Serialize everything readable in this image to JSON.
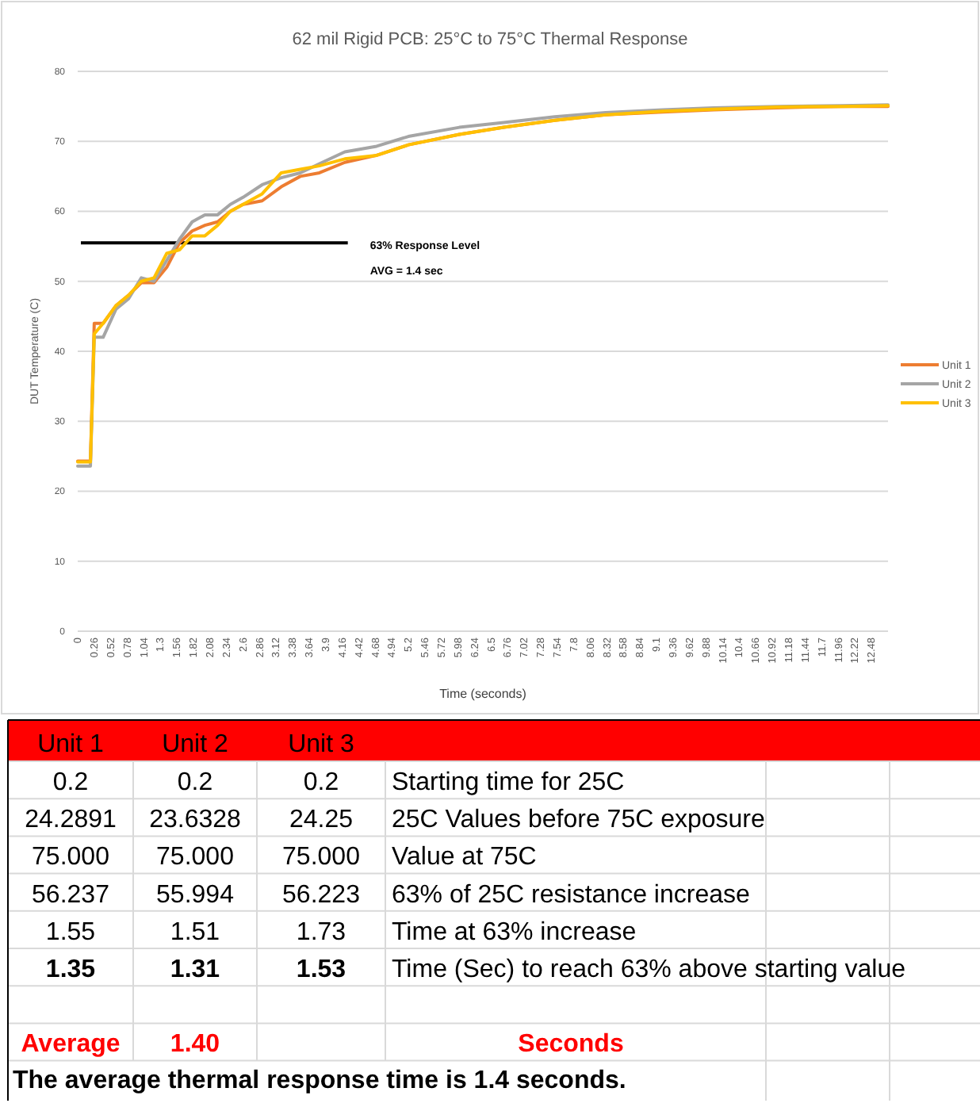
{
  "chart_data": [
    {
      "type": "line",
      "title": "62 mil Rigid PCB: 25°C to 75°C Thermal Response",
      "xlabel": "Time (seconds)",
      "ylabel": "DUT Temperature (C)",
      "x": [
        0,
        0.2,
        0.26,
        0.4,
        0.6,
        0.8,
        1.0,
        1.2,
        1.4,
        1.6,
        1.8,
        2.0,
        2.2,
        2.4,
        2.6,
        2.9,
        3.2,
        3.5,
        3.8,
        4.2,
        4.7,
        5.2,
        6.0,
        6.7,
        7.5,
        8.3,
        9.2,
        10.0,
        11.0,
        12.0,
        12.74
      ],
      "series": [
        {
          "name": "Unit 1",
          "color": "#ed7d31",
          "values": [
            24.3,
            24.3,
            44,
            44,
            46.5,
            48,
            49.8,
            49.8,
            52,
            55.5,
            57.2,
            58,
            58.5,
            60,
            61,
            61.5,
            63.5,
            65,
            65.5,
            67,
            68,
            69.5,
            71,
            72,
            73,
            73.8,
            74.2,
            74.5,
            74.8,
            75,
            75
          ]
        },
        {
          "name": "Unit 2",
          "color": "#a5a5a5",
          "values": [
            23.6,
            23.6,
            42,
            42,
            46,
            47.5,
            50.5,
            50,
            53,
            56,
            58.5,
            59.5,
            59.5,
            61,
            62,
            63.8,
            64.8,
            65.5,
            66.8,
            68.5,
            69.3,
            70.7,
            72,
            72.7,
            73.5,
            74.1,
            74.5,
            74.8,
            75,
            75.1,
            75.2
          ]
        },
        {
          "name": "Unit 3",
          "color": "#ffc000",
          "values": [
            24.2,
            24.2,
            42.5,
            44,
            46.5,
            48,
            50,
            50.5,
            54,
            54.5,
            56.5,
            56.5,
            58,
            60,
            61,
            62.5,
            65.5,
            66,
            66.5,
            67.5,
            68,
            69.5,
            71,
            72,
            73,
            73.8,
            74.3,
            74.6,
            74.9,
            75,
            75.1
          ]
        }
      ],
      "xlim": [
        0,
        12.74
      ],
      "xticks": [
        0,
        0.26,
        0.52,
        0.78,
        1.04,
        1.3,
        1.56,
        1.82,
        2.08,
        2.34,
        2.6,
        2.86,
        3.12,
        3.38,
        3.64,
        3.9,
        4.16,
        4.42,
        4.68,
        4.94,
        5.2,
        5.46,
        5.72,
        5.98,
        6.24,
        6.5,
        6.76,
        7.02,
        7.28,
        7.54,
        7.8,
        8.06,
        8.32,
        8.58,
        8.84,
        9.1,
        9.36,
        9.62,
        9.88,
        10.14,
        10.4,
        10.66,
        10.92,
        11.18,
        11.44,
        11.7,
        11.96,
        12.22,
        12.48
      ],
      "ylim": [
        0,
        80
      ],
      "yticks": [
        0,
        10,
        20,
        30,
        40,
        50,
        60,
        70,
        80
      ],
      "ref_lines": [
        {
          "axis": "y",
          "value": 55.5,
          "label": "63% Response Level",
          "color": "#000000"
        }
      ],
      "annotations": [
        "AVG = 1.4 sec"
      ],
      "grid": "y",
      "legend": "right",
      "marker": "none",
      "line_style": "solid"
    },
    {
      "type": "other",
      "annotations": [
        "Unit 1",
        "Unit 2",
        "Unit 3",
        "0.2",
        "0.2",
        "0.2",
        "Starting time for 25C",
        "24.2891",
        "23.6328",
        "24.25",
        "25C Values before 75C exposure",
        "75.000",
        "75.000",
        "75.000",
        "Value at 75C",
        "56.237",
        "55.994",
        "56.223",
        "63% of 25C resistance increase",
        "1.55",
        "1.51",
        "1.73",
        "Time at 63% increase",
        "1.35",
        "1.31",
        "1.53",
        "Time (Sec) to reach 63% above starting value",
        "Average",
        "1.40",
        "Seconds",
        "The average thermal response time is 1.4 seconds."
      ]
    }
  ]
}
